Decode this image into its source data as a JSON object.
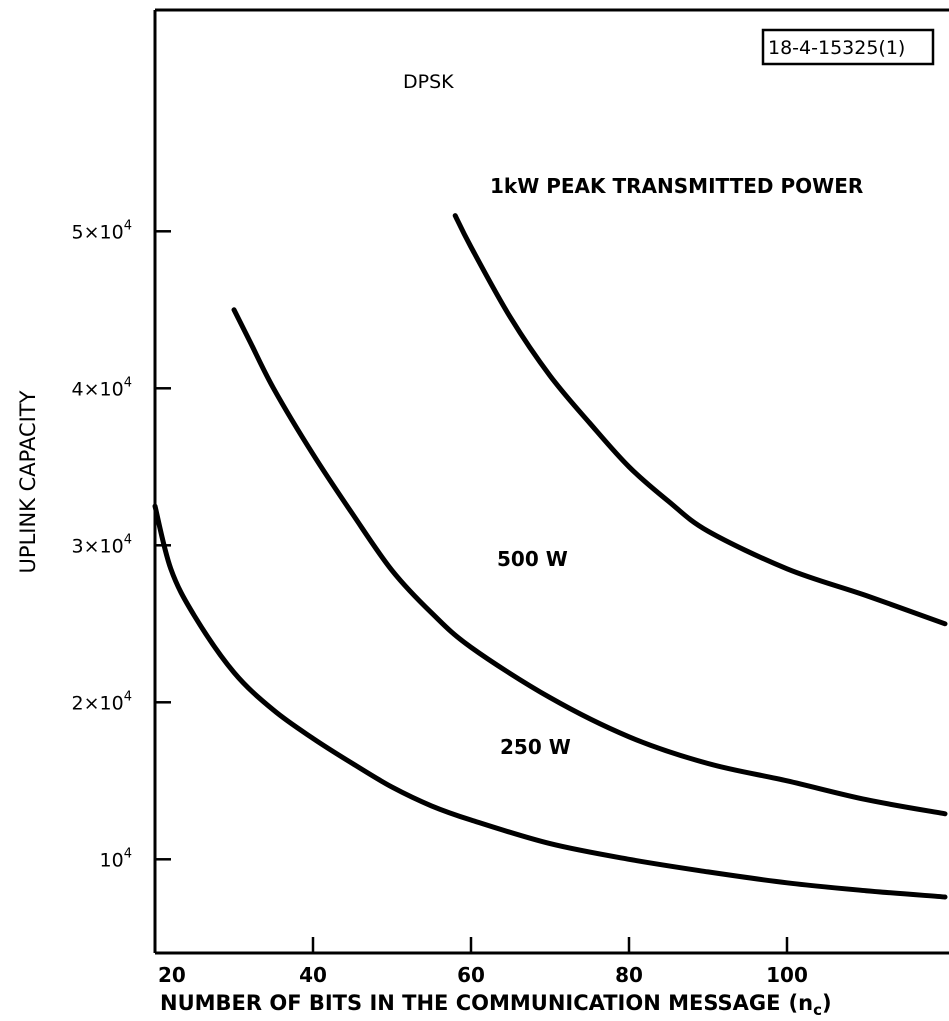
{
  "chart_data": {
    "type": "line",
    "title": "",
    "annotation": "DPSK",
    "figure_id": "18-4-15325(1)",
    "xlabel": "NUMBER OF BITS IN THE COMMUNICATION MESSAGE",
    "xlabel_symbol_base": "(n",
    "xlabel_symbol_sub": "c",
    "xlabel_symbol_end": ")",
    "ylabel": "UPLINK CAPACITY",
    "xlim": [
      20,
      120
    ],
    "ylim": [
      3000,
      58000
    ],
    "x_ticks": [
      {
        "value": 20,
        "label": "20"
      },
      {
        "value": 40,
        "label": "40"
      },
      {
        "value": 60,
        "label": "60"
      },
      {
        "value": 80,
        "label": "80"
      },
      {
        "value": 100,
        "label": "100"
      }
    ],
    "y_ticks": [
      {
        "value": 10000,
        "base": "10",
        "exp": "4"
      },
      {
        "value": 20000,
        "base": "2×10",
        "exp": "4"
      },
      {
        "value": 30000,
        "base": "3×10",
        "exp": "4"
      },
      {
        "value": 40000,
        "base": "4×10",
        "exp": "4"
      },
      {
        "value": 50000,
        "base": "5×10",
        "exp": "4"
      }
    ],
    "grid": false,
    "legend": "none",
    "series": [
      {
        "name": "1kW PEAK TRANSMITTED POWER",
        "points": [
          [
            58,
            51000
          ],
          [
            60,
            49000
          ],
          [
            65,
            44500
          ],
          [
            70,
            40800
          ],
          [
            75,
            37800
          ],
          [
            80,
            35000
          ],
          [
            85,
            32800
          ],
          [
            90,
            30900
          ],
          [
            100,
            28500
          ],
          [
            110,
            26800
          ],
          [
            120,
            25000
          ]
        ]
      },
      {
        "name": "500 W",
        "points": [
          [
            30,
            45000
          ],
          [
            32,
            43000
          ],
          [
            35,
            40000
          ],
          [
            40,
            35800
          ],
          [
            45,
            32000
          ],
          [
            50,
            28400
          ],
          [
            55,
            25700
          ],
          [
            60,
            23500
          ],
          [
            70,
            20300
          ],
          [
            80,
            17800
          ],
          [
            90,
            16100
          ],
          [
            100,
            15000
          ],
          [
            110,
            13800
          ],
          [
            120,
            12900
          ]
        ]
      },
      {
        "name": "250 W",
        "points": [
          [
            20,
            32500
          ],
          [
            22,
            28500
          ],
          [
            25,
            25500
          ],
          [
            30,
            21900
          ],
          [
            35,
            19500
          ],
          [
            40,
            17700
          ],
          [
            45,
            16100
          ],
          [
            50,
            14600
          ],
          [
            55,
            13400
          ],
          [
            60,
            12500
          ],
          [
            70,
            11000
          ],
          [
            80,
            10000
          ],
          [
            90,
            9200
          ],
          [
            100,
            8500
          ],
          [
            110,
            8000
          ],
          [
            120,
            7600
          ]
        ]
      }
    ]
  }
}
